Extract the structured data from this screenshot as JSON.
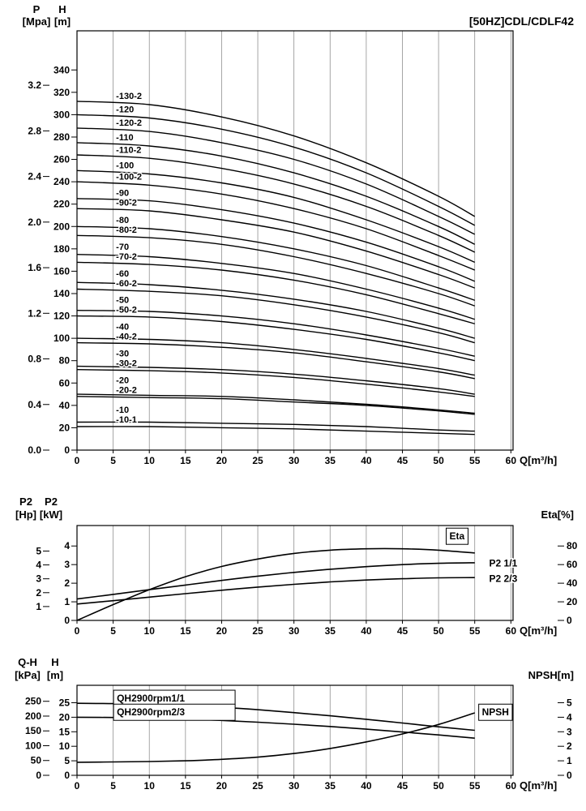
{
  "page": {
    "bg": "#ffffff",
    "ink": "#000000",
    "grid": "#909090"
  },
  "chart_data": [
    {
      "type": "line",
      "title": "[50HZ]CDL/CDLF42",
      "x_label": "Q[m³/h]",
      "x_ticks": [
        0,
        5,
        10,
        15,
        20,
        25,
        30,
        35,
        40,
        45,
        50,
        55,
        60
      ],
      "xlim": [
        0,
        60.3
      ],
      "ylim": [
        0,
        375
      ],
      "grid": "vertical",
      "legend_position": "inline-labels",
      "axis_left_inner": {
        "name": "H",
        "unit": "[m]",
        "dec": 0,
        "ticks": [
          0,
          20,
          40,
          60,
          80,
          100,
          120,
          140,
          160,
          180,
          200,
          220,
          240,
          260,
          280,
          300,
          320,
          340
        ]
      },
      "axis_left_outer": {
        "name": "P",
        "unit": "[Mpa]",
        "dec": 1,
        "to_left": 101.97,
        "ticks": [
          0,
          0.4,
          0.8,
          1.2,
          1.6,
          2.0,
          2.4,
          2.8,
          3.2
        ]
      },
      "series_label": {
        "q": 5.4,
        "dy": -5,
        "min_gap": 12
      },
      "q": [
        0,
        10,
        20,
        30,
        40,
        50,
        55
      ],
      "series": [
        {
          "name": "-130-2",
          "values": [
            312,
            309,
            298,
            281,
            257,
            227,
            209
          ]
        },
        {
          "name": "-120",
          "values": [
            300,
            297,
            287,
            271,
            248,
            218,
            201
          ]
        },
        {
          "name": "-120-2",
          "values": [
            288,
            285,
            275,
            260,
            238,
            209,
            193
          ]
        },
        {
          "name": "-110",
          "values": [
            275,
            272,
            263,
            248,
            227,
            200,
            184
          ]
        },
        {
          "name": "-110-2",
          "values": [
            264,
            261,
            252,
            238,
            218,
            192,
            177
          ]
        },
        {
          "name": "-100",
          "values": [
            250,
            247,
            239,
            226,
            206,
            182,
            168
          ]
        },
        {
          "name": "-100-2",
          "values": [
            240,
            237,
            229,
            216,
            198,
            174,
            161
          ]
        },
        {
          "name": "-90",
          "values": [
            225,
            223,
            215,
            203,
            186,
            164,
            151
          ]
        },
        {
          "name": "-90-2",
          "values": [
            216,
            214,
            206,
            195,
            178,
            157,
            145
          ]
        },
        {
          "name": "-80",
          "values": [
            200,
            198,
            191,
            180,
            165,
            145,
            134
          ]
        },
        {
          "name": "-80-2",
          "values": [
            192,
            190,
            184,
            173,
            158,
            140,
            129
          ]
        },
        {
          "name": "-70",
          "values": [
            175,
            173,
            167,
            158,
            144,
            127,
            117
          ]
        },
        {
          "name": "-70-2",
          "values": [
            168,
            166,
            161,
            152,
            139,
            122,
            113
          ]
        },
        {
          "name": "-60",
          "values": [
            150,
            148,
            143,
            135,
            124,
            109,
            100
          ]
        },
        {
          "name": "-60-2",
          "values": [
            144,
            142,
            138,
            130,
            119,
            105,
            96
          ]
        },
        {
          "name": "-50",
          "values": [
            125,
            124,
            120,
            113,
            103,
            91,
            84
          ]
        },
        {
          "name": "-50-2",
          "values": [
            120,
            119,
            115,
            108,
            99,
            87,
            80
          ]
        },
        {
          "name": "-40",
          "values": [
            100,
            99,
            96,
            90,
            82,
            73,
            67
          ]
        },
        {
          "name": "-40-2",
          "values": [
            96,
            95,
            92,
            87,
            79,
            70,
            64
          ]
        },
        {
          "name": "-30",
          "values": [
            75,
            74,
            72,
            68,
            62,
            55,
            50
          ]
        },
        {
          "name": "-30-2",
          "values": [
            72,
            71,
            69,
            65,
            59,
            52,
            48
          ]
        },
        {
          "name": "-20",
          "values": [
            50,
            49,
            48,
            45,
            41,
            36,
            33
          ]
        },
        {
          "name": "-20-2",
          "values": [
            48,
            47,
            46,
            43,
            40,
            35,
            32
          ]
        },
        {
          "name": "-10",
          "values": [
            25,
            25,
            24,
            23,
            21,
            18,
            17
          ]
        },
        {
          "name": "-10-1",
          "values": [
            21,
            21,
            20,
            19,
            17,
            15,
            14
          ]
        }
      ]
    },
    {
      "type": "line",
      "x_label": "Q[m³/h]",
      "x_ticks": [
        0,
        5,
        10,
        15,
        20,
        25,
        30,
        35,
        40,
        45,
        50,
        55,
        60
      ],
      "xlim": [
        0,
        60.3
      ],
      "ylim": [
        0,
        5.1
      ],
      "grid": "vertical",
      "axis_left_inner": {
        "name": "P2",
        "unit": "[kW]",
        "dec": 0,
        "ticks": [
          0,
          1,
          2,
          3,
          4
        ]
      },
      "axis_left_outer": {
        "name": "P2",
        "unit": "[Hp]",
        "dec": 0,
        "to_left": 0.7457,
        "ticks": [
          1,
          2,
          3,
          4,
          5
        ]
      },
      "axis_right": {
        "title": "Eta[%]",
        "dec": 0,
        "to_left": 0.05,
        "ticks": [
          0,
          20,
          40,
          60,
          80
        ]
      },
      "q": [
        0,
        5,
        10,
        15,
        20,
        25,
        30,
        35,
        40,
        45,
        50,
        55
      ],
      "series": [
        {
          "name": "Eta",
          "axis": "right",
          "values": [
            0,
            17,
            33,
            47,
            58,
            66,
            72,
            75.5,
            77,
            77,
            75.5,
            72.5
          ],
          "label": {
            "text": "Eta",
            "q": 51.5,
            "v": 4.35,
            "boxed": true
          }
        },
        {
          "name": "P2 1/1",
          "axis": "left",
          "values": [
            1.15,
            1.4,
            1.65,
            1.9,
            2.15,
            2.38,
            2.58,
            2.75,
            2.89,
            3.0,
            3.07,
            3.1
          ],
          "label": {
            "text": "P2 1/1",
            "q": 57,
            "v": 2.9,
            "boxed": false
          }
        },
        {
          "name": "P2 2/3",
          "axis": "left",
          "values": [
            0.88,
            1.06,
            1.25,
            1.44,
            1.62,
            1.79,
            1.94,
            2.07,
            2.17,
            2.24,
            2.29,
            2.3
          ],
          "label": {
            "text": "P2 2/3",
            "q": 57,
            "v": 2.08,
            "boxed": false
          }
        }
      ]
    },
    {
      "type": "line",
      "x_label": "Q[m³/h]",
      "x_ticks": [
        0,
        5,
        10,
        15,
        20,
        25,
        30,
        35,
        40,
        45,
        50,
        55,
        60
      ],
      "xlim": [
        0,
        60.3
      ],
      "ylim": [
        0,
        31
      ],
      "grid": "vertical",
      "axis_left_inner": {
        "name": "H",
        "unit": "[m]",
        "dec": 0,
        "ticks": [
          0,
          5,
          10,
          15,
          20,
          25
        ]
      },
      "axis_left_outer": {
        "name": "Q-H",
        "unit": "[kPa]",
        "dec": 0,
        "to_left": 0.10197,
        "ticks": [
          0,
          50,
          100,
          150,
          200,
          250
        ]
      },
      "axis_right": {
        "title": "NPSH[m]",
        "dec": 0,
        "to_left": 5,
        "ticks": [
          0,
          1,
          2,
          3,
          4,
          5
        ]
      },
      "q": [
        0,
        5,
        10,
        15,
        20,
        25,
        30,
        35,
        40,
        45,
        50,
        55
      ],
      "series": [
        {
          "name": "QH2900rpm1/1",
          "axis": "left",
          "values": [
            24.8,
            24.7,
            24.4,
            24.0,
            23.4,
            22.6,
            21.6,
            20.5,
            19.3,
            18.0,
            16.7,
            15.5
          ],
          "label": {
            "text": "QH2900rpm1/1",
            "q": 5.5,
            "v": 25.4,
            "boxed": true,
            "min_width": 150
          }
        },
        {
          "name": "QH2900rpm2/3",
          "axis": "left",
          "values": [
            20.0,
            19.9,
            19.7,
            19.4,
            18.9,
            18.3,
            17.6,
            16.8,
            15.9,
            14.9,
            13.9,
            12.8
          ],
          "label": {
            "text": "QH2900rpm2/3",
            "q": 5.5,
            "v": 20.6,
            "boxed": true,
            "min_width": 150
          }
        },
        {
          "name": "NPSH",
          "axis": "right",
          "values": [
            0.9,
            0.92,
            0.95,
            1.0,
            1.1,
            1.25,
            1.5,
            1.85,
            2.3,
            2.85,
            3.5,
            4.3
          ],
          "label": {
            "text": "NPSH",
            "q": 56,
            "v": 20.6,
            "boxed": true
          }
        }
      ]
    }
  ]
}
